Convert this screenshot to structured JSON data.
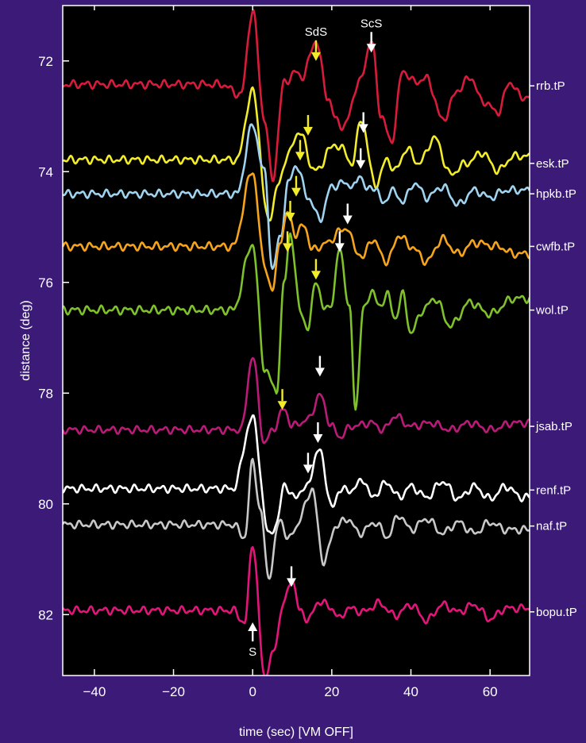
{
  "chart_data": {
    "type": "line",
    "title": "",
    "xlabel": "time (sec) [VM OFF]",
    "ylabel": "distance (deg)",
    "xlim": [
      -48,
      70
    ],
    "ylim": [
      83.1,
      71.0
    ],
    "x_ticks": [
      -40,
      -20,
      0,
      20,
      40,
      60
    ],
    "x_tick_labels": [
      "−40",
      "−20",
      "0",
      "20",
      "40",
      "60"
    ],
    "y_ticks": [
      72,
      74,
      76,
      78,
      80,
      82
    ],
    "y_tick_labels": [
      "72",
      "74",
      "76",
      "78",
      "80",
      "82"
    ],
    "grid": false,
    "background": "#000000",
    "frame_color": "#ffffff",
    "traces": [
      {
        "name": "rrb.tP",
        "color": "#d81b3a",
        "baseline": 72.45,
        "amp": 1.35,
        "peaks": [
          [
            -8,
            0.02
          ],
          [
            -3,
            -0.12
          ],
          [
            0,
            1.0
          ],
          [
            3,
            -0.45
          ],
          [
            5,
            -1.25
          ],
          [
            8,
            0.05
          ],
          [
            11,
            0.18
          ],
          [
            12.5,
            0.12
          ],
          [
            16,
            0.6
          ],
          [
            19,
            -0.15
          ],
          [
            21,
            -0.45
          ],
          [
            23,
            -0.55
          ],
          [
            27,
            0.05
          ],
          [
            30,
            0.6
          ],
          [
            32.5,
            -0.4
          ],
          [
            35,
            -0.75
          ],
          [
            38,
            0.2
          ],
          [
            41,
            0.05
          ],
          [
            44,
            0.1
          ],
          [
            48,
            -0.45
          ],
          [
            52,
            -0.05
          ],
          [
            55,
            0.12
          ],
          [
            58,
            -0.2
          ],
          [
            62,
            -0.35
          ],
          [
            65,
            0.05
          ],
          [
            68,
            -0.15
          ]
        ]
      },
      {
        "name": "esk.tP",
        "color": "#f2ec2a",
        "baseline": 73.85,
        "amp": 1.3,
        "peaks": [
          [
            -4,
            0.05
          ],
          [
            0,
            1.0
          ],
          [
            4,
            -0.8
          ],
          [
            6.5,
            -0.3
          ],
          [
            9,
            0.15
          ],
          [
            12,
            0.45
          ],
          [
            15,
            -0.05
          ],
          [
            17,
            -0.1
          ],
          [
            19,
            0.2
          ],
          [
            22,
            0.25
          ],
          [
            25,
            0.0
          ],
          [
            27.5,
            0.6
          ],
          [
            31,
            -0.3
          ],
          [
            34,
            0.05
          ],
          [
            36,
            -0.1
          ],
          [
            39,
            0.2
          ],
          [
            42,
            0.0
          ],
          [
            46,
            0.35
          ],
          [
            50,
            -0.15
          ],
          [
            54,
            0.0
          ],
          [
            58,
            0.15
          ],
          [
            62,
            -0.1
          ],
          [
            66,
            0.1
          ]
        ]
      },
      {
        "name": "hpkb.tP",
        "color": "#9fd3f0",
        "baseline": 74.4,
        "amp": 1.3,
        "peaks": [
          [
            -4,
            0.0
          ],
          [
            0,
            0.95
          ],
          [
            3,
            0.3
          ],
          [
            5,
            -1.05
          ],
          [
            7,
            -0.6
          ],
          [
            9,
            0.15
          ],
          [
            11,
            0.4
          ],
          [
            14,
            -0.05
          ],
          [
            17,
            -0.35
          ],
          [
            20,
            0.1
          ],
          [
            23,
            0.15
          ],
          [
            26,
            0.1
          ],
          [
            27,
            0.28
          ],
          [
            29,
            0.05
          ],
          [
            31,
            0.1
          ],
          [
            33,
            -0.15
          ],
          [
            35,
            0.05
          ],
          [
            38,
            -0.1
          ],
          [
            41,
            0.15
          ],
          [
            44,
            -0.05
          ],
          [
            48,
            0.1
          ],
          [
            52,
            -0.15
          ],
          [
            56,
            0.05
          ],
          [
            60,
            -0.05
          ],
          [
            64,
            0.05
          ]
        ]
      },
      {
        "name": "cwfb.tP",
        "color": "#f5a41c",
        "baseline": 75.35,
        "amp": 1.35,
        "peaks": [
          [
            -5,
            0.0
          ],
          [
            0,
            1.0
          ],
          [
            3,
            -0.25
          ],
          [
            5,
            -0.6
          ],
          [
            7,
            0.1
          ],
          [
            9,
            0.45
          ],
          [
            11,
            0.15
          ],
          [
            13,
            0.3
          ],
          [
            15,
            -0.05
          ],
          [
            17,
            0.0
          ],
          [
            19,
            0.05
          ],
          [
            22,
            0.2
          ],
          [
            24,
            0.25
          ],
          [
            26,
            -0.05
          ],
          [
            28,
            -0.15
          ],
          [
            30,
            0.1
          ],
          [
            34,
            -0.2
          ],
          [
            37,
            0.15
          ],
          [
            40,
            0.0
          ],
          [
            44,
            -0.2
          ],
          [
            48,
            0.1
          ],
          [
            52,
            -0.1
          ],
          [
            56,
            0.05
          ],
          [
            62,
            0.0
          ],
          [
            66,
            -0.1
          ]
        ]
      },
      {
        "name": "wol.tP",
        "color": "#7fc12a",
        "baseline": 76.5,
        "amp": 1.4,
        "peaks": [
          [
            -5,
            0.0
          ],
          [
            0,
            0.85
          ],
          [
            3,
            -0.75
          ],
          [
            6,
            -1.05
          ],
          [
            8,
            0.35
          ],
          [
            9.5,
            1.0
          ],
          [
            12,
            0.0
          ],
          [
            14,
            -0.25
          ],
          [
            16,
            0.4
          ],
          [
            18,
            0.0
          ],
          [
            20,
            0.1
          ],
          [
            22,
            0.8
          ],
          [
            24.5,
            0.0
          ],
          [
            26,
            -1.25
          ],
          [
            28,
            0.0
          ],
          [
            30,
            0.25
          ],
          [
            32,
            0.05
          ],
          [
            34,
            0.2
          ],
          [
            36,
            -0.1
          ],
          [
            38,
            0.2
          ],
          [
            40,
            -0.3
          ],
          [
            43,
            0.0
          ],
          [
            46,
            0.15
          ],
          [
            50,
            -0.2
          ],
          [
            55,
            0.1
          ],
          [
            60,
            -0.05
          ],
          [
            66,
            0.15
          ]
        ]
      },
      {
        "name": "jsab.tP",
        "color": "#bb1a78",
        "baseline": 78.6,
        "amp": 1.25,
        "peaks": [
          [
            -3,
            -0.05
          ],
          [
            0,
            1.0
          ],
          [
            3,
            -0.25
          ],
          [
            5,
            -0.05
          ],
          [
            8,
            0.25
          ],
          [
            10,
            0.0
          ],
          [
            12,
            0.05
          ],
          [
            14,
            0.1
          ],
          [
            17,
            0.45
          ],
          [
            20,
            0.0
          ],
          [
            22,
            -0.15
          ],
          [
            25,
            0.0
          ],
          [
            30,
            0.05
          ],
          [
            33,
            -0.05
          ],
          [
            36,
            0.15
          ],
          [
            40,
            0.0
          ],
          [
            45,
            0.05
          ],
          [
            50,
            -0.05
          ],
          [
            55,
            0.05
          ],
          [
            60,
            -0.05
          ],
          [
            66,
            0.05
          ]
        ]
      },
      {
        "name": "renf.tP",
        "color": "#ffffff",
        "baseline": 79.75,
        "amp": 1.3,
        "peaks": [
          [
            -5,
            0.02
          ],
          [
            0,
            1.0
          ],
          [
            4,
            -0.6
          ],
          [
            6,
            -0.5
          ],
          [
            8,
            0.1
          ],
          [
            10,
            -0.1
          ],
          [
            13,
            0.0
          ],
          [
            17,
            0.55
          ],
          [
            20,
            -0.25
          ],
          [
            22,
            0.0
          ],
          [
            25,
            0.0
          ],
          [
            28,
            0.15
          ],
          [
            30,
            -0.1
          ],
          [
            34,
            0.1
          ],
          [
            37,
            -0.1
          ],
          [
            40,
            0.05
          ],
          [
            44,
            -0.1
          ],
          [
            48,
            0.12
          ],
          [
            52,
            -0.12
          ],
          [
            56,
            0.05
          ],
          [
            60,
            -0.12
          ],
          [
            64,
            0.05
          ],
          [
            68,
            -0.1
          ]
        ]
      },
      {
        "name": "naf.tP",
        "color": "#c8c8c8",
        "baseline": 80.4,
        "amp": 1.3,
        "peaks": [
          [
            -5,
            0.02
          ],
          [
            -2,
            -0.15
          ],
          [
            0,
            0.9
          ],
          [
            2,
            0.2
          ],
          [
            4,
            -0.7
          ],
          [
            7,
            0.1
          ],
          [
            9,
            -0.2
          ],
          [
            11,
            0.0
          ],
          [
            15,
            0.5
          ],
          [
            18,
            -0.5
          ],
          [
            21,
            0.0
          ],
          [
            24,
            0.1
          ],
          [
            27,
            -0.1
          ],
          [
            31,
            0.05
          ],
          [
            34,
            -0.15
          ],
          [
            37,
            0.15
          ],
          [
            40,
            -0.05
          ],
          [
            44,
            0.1
          ],
          [
            48,
            -0.1
          ],
          [
            52,
            0.05
          ],
          [
            56,
            -0.1
          ],
          [
            60,
            0.05
          ],
          [
            64,
            -0.05
          ]
        ]
      },
      {
        "name": "bopu.tP",
        "color": "#e4157a",
        "baseline": 81.95,
        "amp": 1.3,
        "peaks": [
          [
            -5,
            0.02
          ],
          [
            -2,
            -0.15
          ],
          [
            0,
            0.95
          ],
          [
            3,
            -0.9
          ],
          [
            5,
            -0.6
          ],
          [
            8,
            0.15
          ],
          [
            10,
            0.45
          ],
          [
            12,
            0.0
          ],
          [
            14,
            -0.1
          ],
          [
            17,
            0.15
          ],
          [
            20,
            0.05
          ],
          [
            22,
            -0.1
          ],
          [
            24,
            0.05
          ],
          [
            28,
            0.0
          ],
          [
            32,
            0.12
          ],
          [
            36,
            -0.05
          ],
          [
            40,
            0.1
          ],
          [
            44,
            -0.12
          ],
          [
            48,
            0.1
          ],
          [
            52,
            0.0
          ],
          [
            56,
            0.1
          ],
          [
            60,
            -0.1
          ],
          [
            64,
            0.05
          ],
          [
            68,
            0.05
          ]
        ]
      }
    ],
    "arrows": [
      {
        "x": 16,
        "y": 72.0,
        "color": "#f2ec2a",
        "label": "SdS"
      },
      {
        "x": 30,
        "y": 71.85,
        "color": "#ffffff",
        "label": "ScS"
      },
      {
        "x": 14,
        "y": 73.35,
        "color": "#f2ec2a",
        "label": ""
      },
      {
        "x": 28,
        "y": 73.3,
        "color": "#ffffff",
        "label": ""
      },
      {
        "x": 12,
        "y": 73.8,
        "color": "#f2ec2a",
        "label": ""
      },
      {
        "x": 27.3,
        "y": 73.95,
        "color": "#ffffff",
        "label": ""
      },
      {
        "x": 11,
        "y": 74.45,
        "color": "#f2ec2a",
        "label": ""
      },
      {
        "x": 24,
        "y": 74.95,
        "color": "#ffffff",
        "label": ""
      },
      {
        "x": 9.5,
        "y": 74.9,
        "color": "#f2ec2a",
        "label": ""
      },
      {
        "x": 22,
        "y": 75.45,
        "color": "#ffffff",
        "label": ""
      },
      {
        "x": 8.8,
        "y": 75.45,
        "color": "#f2ec2a",
        "label": ""
      },
      {
        "x": 16,
        "y": 75.95,
        "color": "#f2ec2a",
        "label": ""
      },
      {
        "x": 17,
        "y": 77.7,
        "color": "#ffffff",
        "label": ""
      },
      {
        "x": 7.5,
        "y": 78.3,
        "color": "#f2ec2a",
        "label": ""
      },
      {
        "x": 16.5,
        "y": 78.9,
        "color": "#ffffff",
        "label": ""
      },
      {
        "x": 14,
        "y": 79.45,
        "color": "#ffffff",
        "label": ""
      },
      {
        "x": 9.8,
        "y": 81.5,
        "color": "#ffffff",
        "label": ""
      }
    ],
    "s_arrow": {
      "x": 0,
      "label": "S",
      "color": "#ffffff"
    }
  }
}
